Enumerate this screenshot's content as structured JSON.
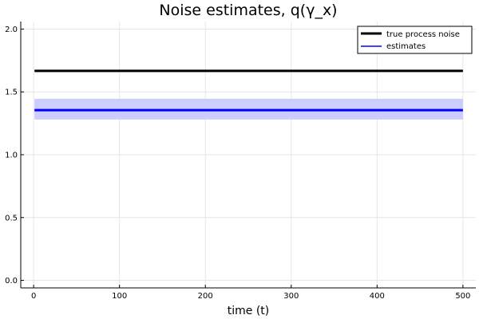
{
  "chart_data": {
    "type": "line",
    "title": "Noise estimates, q(γ_x)",
    "xlabel": "time (t)",
    "ylabel": "",
    "xlim": [
      -15,
      515
    ],
    "ylim": [
      -0.06,
      2.06
    ],
    "xticks": [
      0,
      100,
      200,
      300,
      400,
      500
    ],
    "yticks": [
      0.0,
      0.5,
      1.0,
      1.5,
      2.0
    ],
    "ytick_labels": [
      "0.0",
      "0.5",
      "1.0",
      "1.5",
      "2.0"
    ],
    "grid": true,
    "legend_position": "top-right",
    "series": [
      {
        "name": "true process noise",
        "color": "#000000",
        "x": [
          1,
          500
        ],
        "y": [
          1.667,
          1.667
        ]
      },
      {
        "name": "estimates",
        "color": "#0000ff",
        "x": [
          1,
          500
        ],
        "y": [
          1.355,
          1.355
        ],
        "band_lower": [
          1.28,
          1.28
        ],
        "band_upper": [
          1.445,
          1.445
        ],
        "band_color": "#ccccff"
      }
    ]
  }
}
